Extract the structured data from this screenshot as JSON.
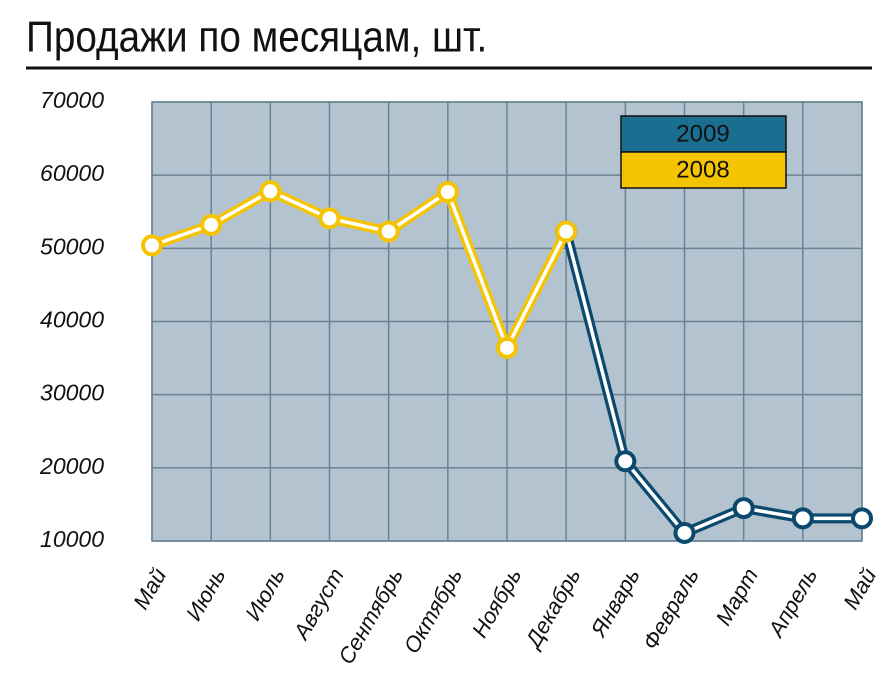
{
  "chart_data": {
    "type": "line",
    "title": "Продажи по месяцам, шт.",
    "categories": [
      "Май",
      "Июнь",
      "Июль",
      "Август",
      "Сентябрь",
      "Октябрь",
      "Ноябрь",
      "Декабрь",
      "Январь",
      "Февраль",
      "Март",
      "Апрель",
      "Май"
    ],
    "series": [
      {
        "name": "2009",
        "color": "#0b4a6d",
        "legend_color": "#1a6f91",
        "values": [
          null,
          null,
          null,
          null,
          null,
          null,
          null,
          52300,
          20900,
          11100,
          14500,
          13100,
          13100
        ]
      },
      {
        "name": "2008",
        "color": "#f5c400",
        "legend_color": "#f5c400",
        "values": [
          50400,
          53200,
          57800,
          54100,
          52300,
          57700,
          36400,
          52300,
          null,
          null,
          null,
          null,
          null
        ]
      }
    ],
    "ylim": [
      10000,
      70000
    ],
    "yticks": [
      10000,
      20000,
      30000,
      40000,
      50000,
      60000,
      70000
    ],
    "grid": true
  }
}
